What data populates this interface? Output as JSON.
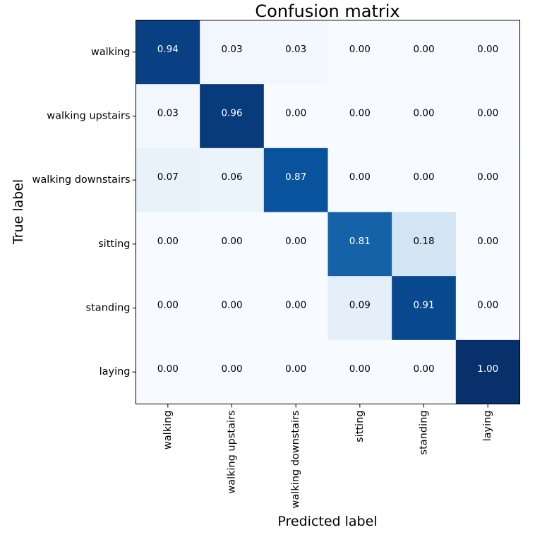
{
  "chart_data": {
    "type": "heatmap",
    "title": "Confusion matrix",
    "xlabel": "Predicted label",
    "ylabel": "True label",
    "x_categories": [
      "walking",
      "walking upstairs",
      "walking downstairs",
      "sitting",
      "standing",
      "laying"
    ],
    "y_categories": [
      "walking",
      "walking upstairs",
      "walking downstairs",
      "sitting",
      "standing",
      "laying"
    ],
    "values": [
      [
        0.94,
        0.03,
        0.03,
        0.0,
        0.0,
        0.0
      ],
      [
        0.03,
        0.96,
        0.0,
        0.0,
        0.0,
        0.0
      ],
      [
        0.07,
        0.06,
        0.87,
        0.0,
        0.0,
        0.0
      ],
      [
        0.0,
        0.0,
        0.0,
        0.81,
        0.18,
        0.0
      ],
      [
        0.0,
        0.0,
        0.0,
        0.09,
        0.91,
        0.0
      ],
      [
        0.0,
        0.0,
        0.0,
        0.0,
        0.0,
        1.0
      ]
    ],
    "value_format": "0.00",
    "colormap": "Blues",
    "value_range": [
      0,
      1
    ],
    "colorbar": false,
    "grid": false,
    "text_colors": {
      "dark_cells": "#ffffff",
      "light_cells": "#000000"
    }
  }
}
